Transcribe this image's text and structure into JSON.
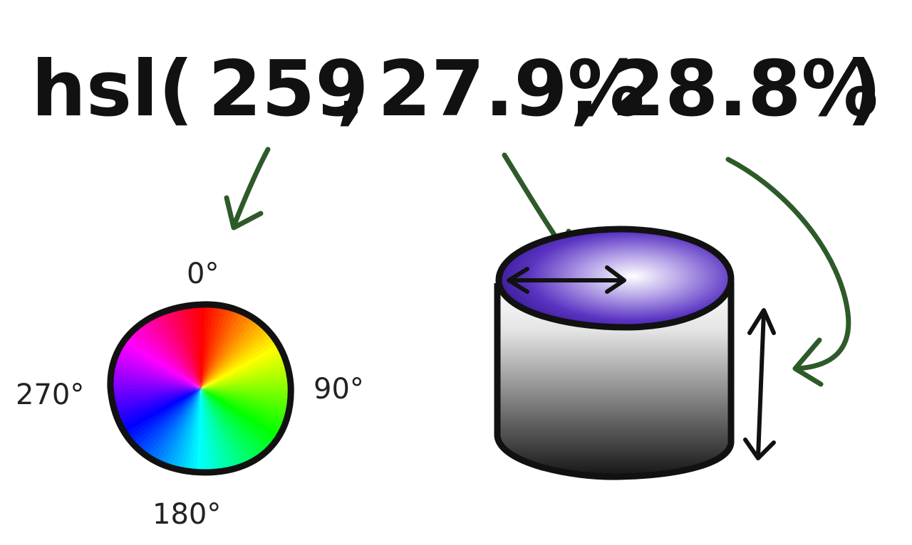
{
  "formula": {
    "prefix": "hsl(",
    "hue": "259",
    "sep1": ",",
    "saturation": "27.9%",
    "sep2": ",",
    "lightness": "28.8%",
    "suffix": ")"
  },
  "hue_wheel": {
    "label_top": "0°",
    "label_right": "90°",
    "label_bottom": "180°",
    "label_left": "270°"
  },
  "colors": {
    "ink": "#111111",
    "arrow_green": "#2e5a2a",
    "cylinder_top": "#4a2aa8",
    "cylinder_top_highlight": "#ffffff",
    "cylinder_side_top": "#ffffff",
    "cylinder_side_bottom": "#1a1a1a"
  },
  "icons": {
    "hue_pointer": "curved-arrow-icon",
    "saturation_pointer": "curved-arrow-icon",
    "lightness_pointer": "curved-arrow-icon",
    "radius_arrow": "double-headed-arrow-icon",
    "height_arrow": "double-headed-arrow-icon"
  }
}
